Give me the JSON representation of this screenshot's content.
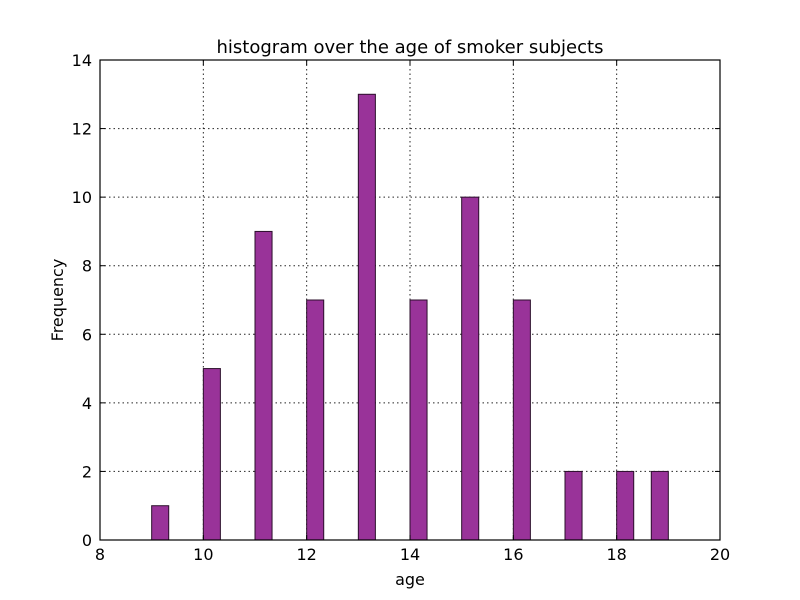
{
  "chart_data": {
    "type": "bar",
    "title": "histogram over the age of smoker subjects",
    "xlabel": "age",
    "ylabel": "Frequency",
    "xlim": [
      8,
      20
    ],
    "ylim": [
      0,
      14
    ],
    "xticks": [
      "8",
      "10",
      "12",
      "14",
      "16",
      "18",
      "20"
    ],
    "yticks": [
      "0",
      "2",
      "4",
      "6",
      "8",
      "10",
      "12",
      "14"
    ],
    "grid": true,
    "bar_color": "#993399",
    "bins": [
      {
        "start": 9.0,
        "end": 9.33,
        "value": 1
      },
      {
        "start": 10.0,
        "end": 10.33,
        "value": 5
      },
      {
        "start": 11.0,
        "end": 11.33,
        "value": 9
      },
      {
        "start": 12.0,
        "end": 12.33,
        "value": 7
      },
      {
        "start": 13.0,
        "end": 13.33,
        "value": 13
      },
      {
        "start": 14.0,
        "end": 14.33,
        "value": 7
      },
      {
        "start": 15.0,
        "end": 15.33,
        "value": 10
      },
      {
        "start": 16.0,
        "end": 16.33,
        "value": 7
      },
      {
        "start": 17.0,
        "end": 17.33,
        "value": 2
      },
      {
        "start": 18.0,
        "end": 18.33,
        "value": 2
      },
      {
        "start": 18.67,
        "end": 19.0,
        "value": 2
      }
    ]
  }
}
